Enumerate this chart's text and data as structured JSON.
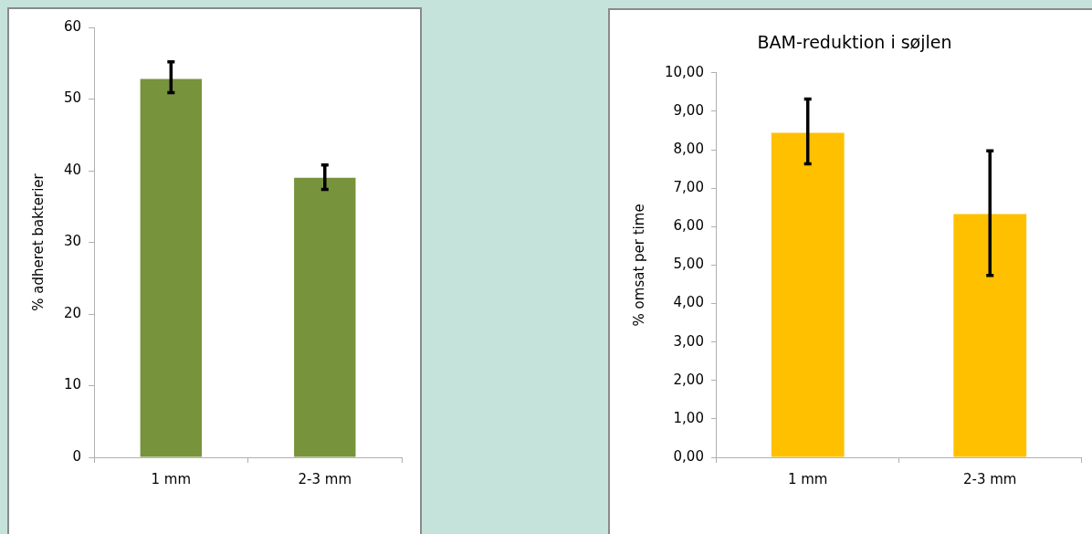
{
  "chart_data": [
    {
      "type": "bar",
      "ylabel": "% adheret bakterier",
      "categories": [
        "1 mm",
        "2-3 mm"
      ],
      "values": [
        52.8,
        39.0
      ],
      "color": "#77933c",
      "errors": [
        [
          50.9,
          55.2
        ],
        [
          37.4,
          40.8
        ]
      ],
      "ylim": [
        0,
        60
      ],
      "yticks": [
        0,
        10,
        20,
        30,
        40,
        50,
        60
      ]
    },
    {
      "type": "bar",
      "title": "BAM-reduktion i søjlen",
      "ylabel": "% omsat per time",
      "categories": [
        "1 mm",
        "2-3 mm"
      ],
      "values": [
        8.44,
        6.33
      ],
      "color": "#ffc000",
      "errors": [
        [
          7.63,
          9.32
        ],
        [
          4.73,
          7.97
        ]
      ],
      "ylim": [
        0,
        10
      ],
      "yticks": [
        {
          "value": 0,
          "label": "0,00"
        },
        {
          "value": 1,
          "label": "1,00"
        },
        {
          "value": 2,
          "label": "2,00"
        },
        {
          "value": 3,
          "label": "3,00"
        },
        {
          "value": 4,
          "label": "4,00"
        },
        {
          "value": 5,
          "label": "5,00"
        },
        {
          "value": 6,
          "label": "6,00"
        },
        {
          "value": 7,
          "label": "7,00"
        },
        {
          "value": 8,
          "label": "8,00"
        },
        {
          "value": 9,
          "label": "9,00"
        },
        {
          "value": 10,
          "label": "10,00"
        }
      ]
    }
  ]
}
